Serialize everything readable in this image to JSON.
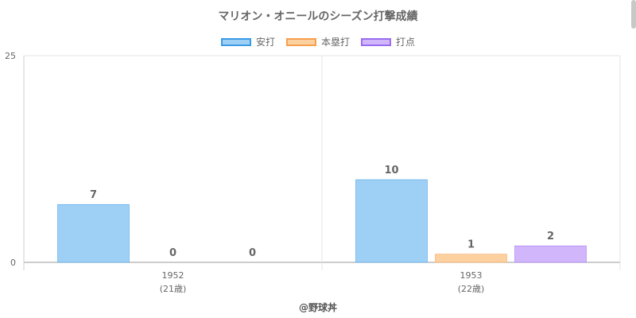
{
  "chart_data": {
    "type": "bar",
    "title": "マリオン・オニールのシーズン打撃成績",
    "categories": [
      "1952",
      "1953"
    ],
    "category_sublabels": [
      "(21歳)",
      "(22歳)"
    ],
    "series": [
      {
        "name": "安打",
        "values": [
          7,
          10
        ],
        "fill": "#9ecff5",
        "border": "#3a9be6"
      },
      {
        "name": "本塁打",
        "values": [
          0,
          1
        ],
        "fill": "#fdd0a0",
        "border": "#f5a04f"
      },
      {
        "name": "打点",
        "values": [
          0,
          2
        ],
        "fill": "#d1b6fb",
        "border": "#9b6cf0"
      }
    ],
    "ylim": [
      0,
      25
    ],
    "yticks": [
      "0",
      "25"
    ],
    "legend_position": "top",
    "grid": true
  },
  "credit": "@野球丼"
}
